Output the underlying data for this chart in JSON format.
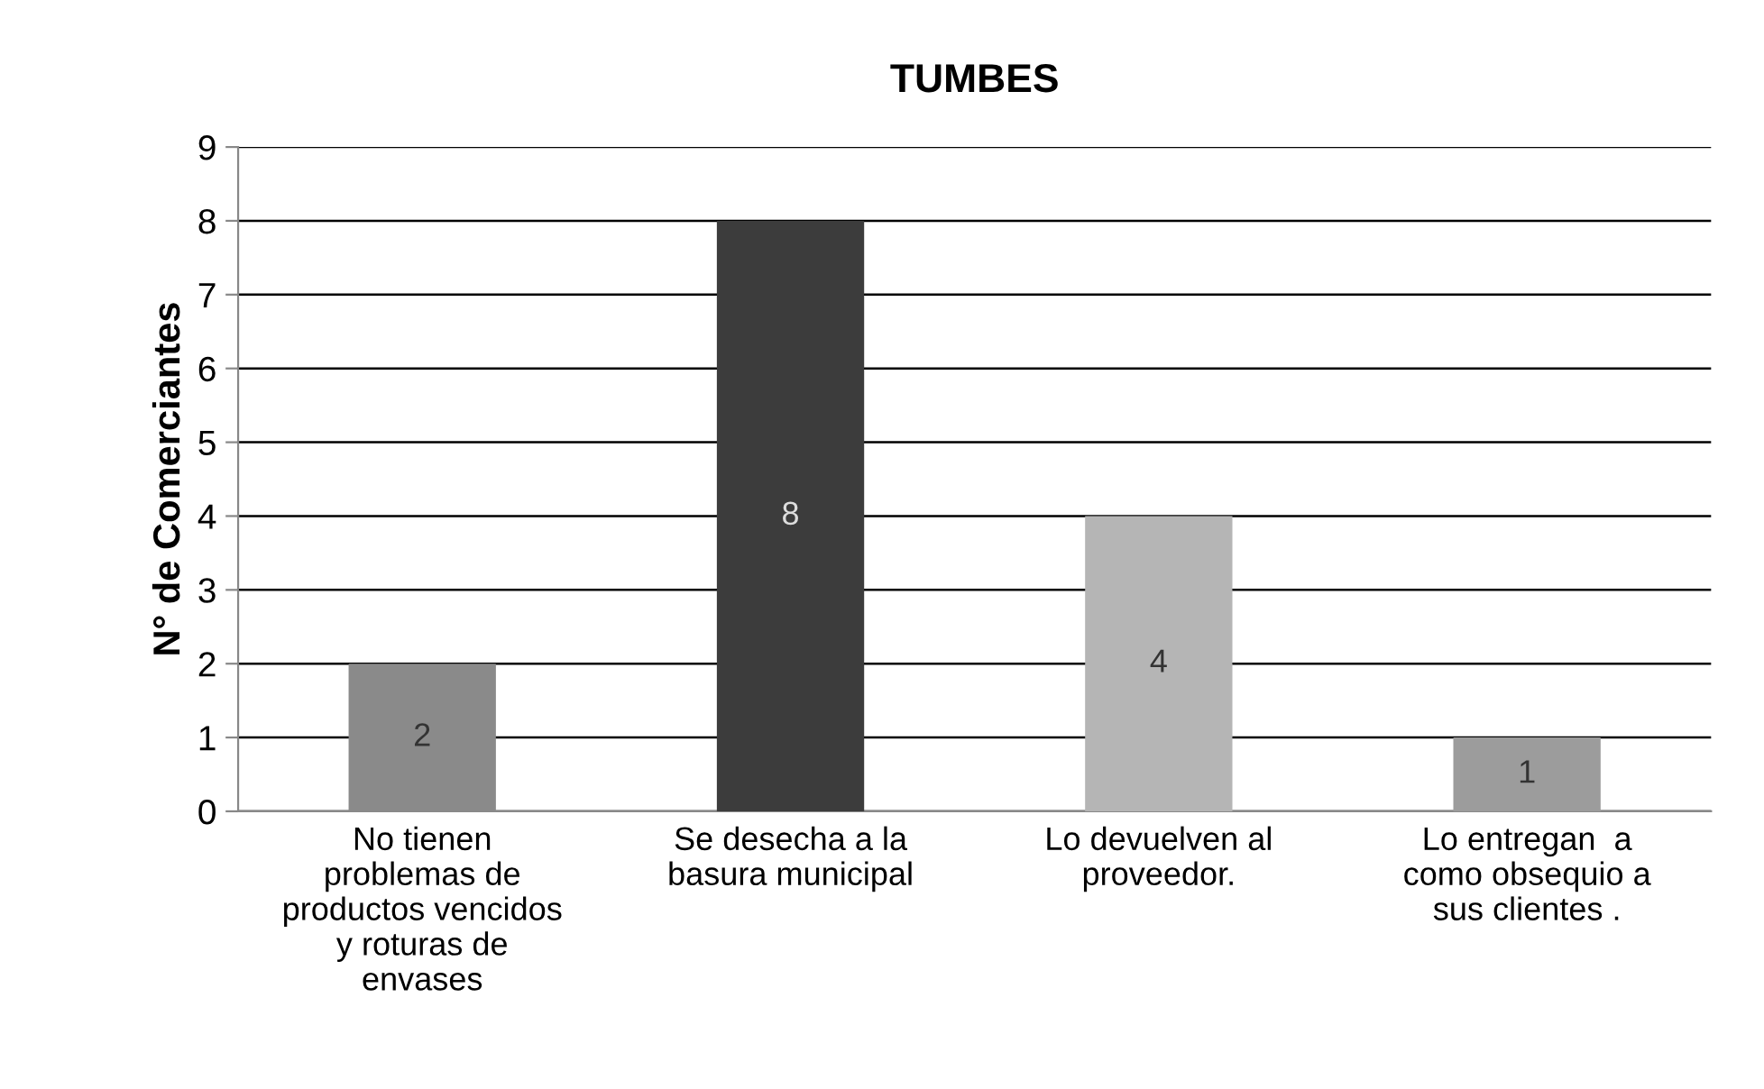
{
  "chart_data": {
    "type": "bar",
    "title": "TUMBES",
    "ylabel": "N° de Comerciantes",
    "categories": [
      "No tienen\nproblemas de\nproductos vencidos\ny roturas de\nenvases",
      "Se desecha a la\nbasura municipal",
      "Lo devuelven al\nproveedor.",
      "Lo entregan  a\ncomo obsequio a\nsus clientes ."
    ],
    "values": [
      2,
      8,
      4,
      1
    ],
    "colors": [
      "#8a8a8a",
      "#3c3c3c",
      "#b5b5b5",
      "#9c9c9c"
    ],
    "ylim": [
      0,
      9
    ],
    "yticks": [
      0,
      1,
      2,
      3,
      4,
      5,
      6,
      7,
      8,
      9
    ],
    "grid": "y",
    "data_labels": true
  }
}
